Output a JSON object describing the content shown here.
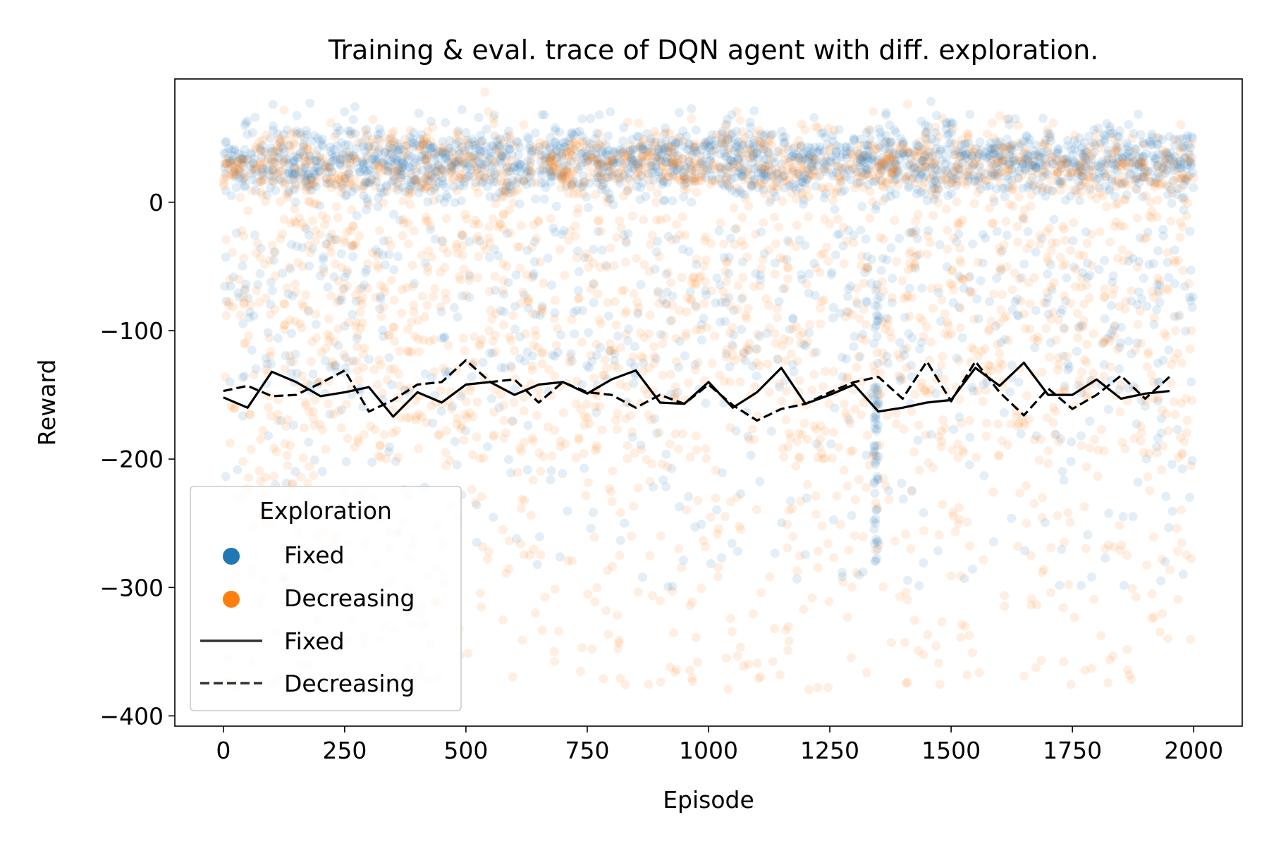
{
  "chart_data": {
    "type": "scatter",
    "title": "Training & eval. trace of DQN agent with diff. exploration.",
    "xlabel": "Episode",
    "ylabel": "Reward",
    "xlim": [
      -100,
      2100
    ],
    "ylim": [
      -408,
      96
    ],
    "xticks": [
      0,
      250,
      500,
      750,
      1000,
      1250,
      1500,
      1750,
      2000
    ],
    "xtick_labels": [
      "0",
      "250",
      "500",
      "750",
      "1000",
      "1250",
      "1500",
      "1750",
      "2000"
    ],
    "yticks": [
      0,
      -100,
      -200,
      -300,
      -400
    ],
    "ytick_labels": [
      "0",
      "−100",
      "−200",
      "−300",
      "−400"
    ],
    "grid": false,
    "legend": {
      "title": "Exploration",
      "placement": "lower-left",
      "entries": [
        {
          "label": "Fixed",
          "kind": "scatter",
          "color": "#1f77b4"
        },
        {
          "label": "Decreasing",
          "kind": "scatter",
          "color": "#ff7f0e"
        },
        {
          "label": "Fixed",
          "kind": "line",
          "dash": "solid"
        },
        {
          "label": "Decreasing",
          "kind": "line",
          "dash": "dashed"
        }
      ]
    },
    "scatter_series": [
      {
        "name": "Fixed",
        "color": "#1f77b4",
        "opacity": 0.12,
        "x_range": [
          0,
          2000
        ],
        "typical_range": [
          -30,
          60
        ],
        "note_values": "dense cloud of per-episode training rewards; approx. 0–60 upper band, sparse tail down to about -365"
      },
      {
        "name": "Decreasing",
        "color": "#ff7f0e",
        "opacity": 0.12,
        "x_range": [
          0,
          2000
        ],
        "typical_range": [
          -250,
          50
        ],
        "note_values": "per-episode training rewards; resets near episodes 0, 670 and 1350; sparse tail down to about -385"
      }
    ],
    "line_series": [
      {
        "name": "Fixed",
        "dash": "solid",
        "color": "#000000",
        "x": [
          0,
          50,
          100,
          150,
          200,
          250,
          300,
          350,
          400,
          450,
          500,
          550,
          600,
          650,
          700,
          750,
          800,
          850,
          900,
          950,
          1000,
          1050,
          1100,
          1150,
          1200,
          1250,
          1300,
          1350,
          1400,
          1450,
          1500,
          1550,
          1600,
          1650,
          1700,
          1750,
          1800,
          1850,
          1900,
          1950
        ],
        "y": [
          -152,
          -160,
          -132,
          -140,
          -151,
          -148,
          -144,
          -167,
          -148,
          -156,
          -142,
          -140,
          -150,
          -142,
          -140,
          -149,
          -138,
          -131,
          -156,
          -157,
          -140,
          -160,
          -148,
          -129,
          -157,
          -150,
          -142,
          -163,
          -160,
          -156,
          -154,
          -129,
          -143,
          -125,
          -150,
          -150,
          -138,
          -153,
          -149,
          -147
        ]
      },
      {
        "name": "Decreasing",
        "dash": "dashed",
        "color": "#000000",
        "x": [
          0,
          50,
          100,
          150,
          200,
          250,
          300,
          350,
          400,
          450,
          500,
          550,
          600,
          650,
          700,
          750,
          800,
          850,
          900,
          950,
          1000,
          1050,
          1100,
          1150,
          1200,
          1250,
          1300,
          1350,
          1400,
          1450,
          1500,
          1550,
          1600,
          1650,
          1700,
          1750,
          1800,
          1850,
          1900,
          1950
        ],
        "y": [
          -147,
          -143,
          -151,
          -150,
          -141,
          -131,
          -163,
          -154,
          -142,
          -140,
          -123,
          -140,
          -138,
          -156,
          -140,
          -148,
          -150,
          -160,
          -150,
          -157,
          -142,
          -158,
          -170,
          -161,
          -157,
          -148,
          -140,
          -136,
          -153,
          -124,
          -155,
          -124,
          -148,
          -166,
          -145,
          -161,
          -150,
          -135,
          -153,
          -136
        ]
      }
    ]
  }
}
